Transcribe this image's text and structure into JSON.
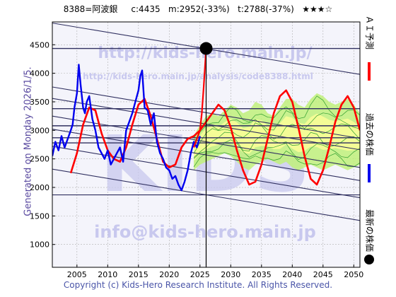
{
  "header": {
    "title": "8388=阿波銀     c:4435   m:2952(-33%)   t:2788(-37%)   ★★★☆"
  },
  "side_text": "Generated on Monday 2026/1/5.",
  "copyright": "Copyright (c) Kids-Hero Research Institute. All Rights Reserved.",
  "watermarks": {
    "url_main": "http://kids-hero.main.jp/",
    "url_analysis": "http://kids-hero.main.jp/analysis/code8388.html",
    "email": "info@kids-hero.main.jp",
    "big": "KIDS"
  },
  "legend": {
    "ai_forecast": "ＡＩ予測",
    "past_price": "過去の株価",
    "latest_price": "最新の株価"
  },
  "colors": {
    "ai_forecast": "#ff0000",
    "past_price": "#0000ee",
    "recent_price": "#ff0000",
    "latest_marker": "#000000",
    "band_fill": "#bff07a",
    "band_lines": "#2f9e2f",
    "yellow_fill": "#ffff99",
    "trend_lines": "#303060",
    "grid": "#b0b0b0"
  },
  "chart_data": {
    "type": "line",
    "xlim": [
      2001,
      2051
    ],
    "ylim": [
      600,
      4900
    ],
    "x_ticks": [
      2005,
      2010,
      2015,
      2020,
      2025,
      2030,
      2035,
      2040,
      2045,
      2050
    ],
    "y_ticks": [
      1000,
      1500,
      2000,
      2500,
      3000,
      3500,
      4000,
      4500
    ],
    "grid": true,
    "latest": {
      "x": 2026.0,
      "y": 4435,
      "label": "c:4435"
    },
    "vertical_line_x": 2026.0,
    "horizontal_levels": [
      4435,
      3380,
      3080,
      2870,
      2780
    ],
    "trend_lines": [
      {
        "x": [
          2001,
          2051
        ],
        "y": [
          4880,
          3980
        ]
      },
      {
        "x": [
          2001,
          2051
        ],
        "y": [
          3760,
          2860
        ]
      },
      {
        "x": [
          2001,
          2051
        ],
        "y": [
          3560,
          2660
        ]
      },
      {
        "x": [
          2001,
          2051
        ],
        "y": [
          3250,
          2350
        ]
      },
      {
        "x": [
          2001,
          2051
        ],
        "y": [
          3020,
          2120
        ]
      },
      {
        "x": [
          2001,
          2051
        ],
        "y": [
          2720,
          1820
        ]
      },
      {
        "x": [
          2001,
          2051
        ],
        "y": [
          2320,
          1420
        ]
      },
      {
        "x": [
          2001,
          2051
        ],
        "y": [
          1870,
          1870
        ]
      }
    ],
    "series": [
      {
        "name": "過去の株価",
        "x": [
          2001.0,
          2001.5,
          2002.0,
          2002.5,
          2003.0,
          2003.5,
          2004.0,
          2004.3,
          2004.6,
          2005.0,
          2005.3,
          2005.6,
          2006.0,
          2006.3,
          2006.6,
          2007.0,
          2007.5,
          2008.0,
          2008.5,
          2009.0,
          2009.5,
          2010.0,
          2010.5,
          2011.0,
          2011.5,
          2012.0,
          2012.5,
          2013.0,
          2013.5,
          2014.0,
          2014.5,
          2015.0,
          2015.3,
          2015.6,
          2016.0,
          2016.5,
          2017.0,
          2017.5,
          2018.0,
          2018.5,
          2019.0,
          2019.5,
          2020.0,
          2020.5,
          2021.0,
          2021.5,
          2022.0,
          2022.5,
          2023.0,
          2023.5,
          2024.0,
          2024.5,
          2025.0
        ],
        "y": [
          2550,
          2800,
          2650,
          2900,
          2700,
          2850,
          3000,
          3100,
          3400,
          3650,
          4150,
          3800,
          3400,
          3300,
          3500,
          3600,
          3200,
          3000,
          2700,
          2600,
          2500,
          2650,
          2400,
          2500,
          2600,
          2700,
          2450,
          3000,
          3150,
          3300,
          3500,
          3700,
          3950,
          4050,
          3400,
          3350,
          3100,
          3300,
          2800,
          2600,
          2500,
          2350,
          2300,
          2150,
          2200,
          2050,
          1950,
          2100,
          2300,
          2600,
          2800,
          2700,
          2900
        ]
      },
      {
        "name": "recent",
        "x": [
          2024.0,
          2024.5,
          2025.0,
          2025.3,
          2025.6,
          2026.0
        ],
        "y": [
          2700,
          2850,
          3000,
          3300,
          3750,
          4435
        ]
      },
      {
        "name": "ＡＩ予測",
        "x": [
          2004.0,
          2005.0,
          2006.0,
          2007.0,
          2008.0,
          2009.0,
          2010.0,
          2011.0,
          2012.0,
          2013.0,
          2014.0,
          2015.0,
          2016.0,
          2017.0,
          2018.0,
          2019.0,
          2020.0,
          2021.0,
          2022.0,
          2023.0,
          2024.0,
          2025.0,
          2026.0,
          2027.0,
          2028.0,
          2029.0,
          2030.0,
          2031.0,
          2032.0,
          2033.0,
          2034.0,
          2035.0,
          2036.0,
          2037.0,
          2038.0,
          2039.0,
          2040.0,
          2041.0,
          2042.0,
          2043.0,
          2044.0,
          2045.0,
          2046.0,
          2047.0,
          2048.0,
          2049.0,
          2050.0,
          2051.0
        ],
        "y": [
          2250,
          2600,
          3100,
          3400,
          3350,
          2950,
          2650,
          2500,
          2450,
          2700,
          3100,
          3450,
          3550,
          3250,
          2850,
          2450,
          2350,
          2400,
          2700,
          2850,
          2900,
          3000,
          3150,
          3300,
          3450,
          3350,
          3050,
          2650,
          2300,
          2050,
          2100,
          2400,
          2850,
          3300,
          3600,
          3700,
          3500,
          3050,
          2550,
          2150,
          2050,
          2300,
          2700,
          3150,
          3450,
          3600,
          3400,
          3000
        ]
      }
    ],
    "band": {
      "x": [
        2024.0,
        2025.0,
        2026.0,
        2027.0,
        2028.0,
        2029.0,
        2030.0,
        2031.0,
        2032.0,
        2033.0,
        2034.0,
        2035.0,
        2036.0,
        2037.0,
        2038.0,
        2039.0,
        2040.0,
        2041.0,
        2042.0,
        2043.0,
        2044.0,
        2045.0,
        2046.0,
        2047.0,
        2048.0,
        2049.0,
        2050.0,
        2051.0
      ],
      "upper": [
        2900,
        3100,
        3250,
        3300,
        3250,
        3350,
        3450,
        3400,
        3300,
        3350,
        3500,
        3450,
        3300,
        3250,
        3400,
        3550,
        3550,
        3450,
        3400,
        3550,
        3650,
        3600,
        3500,
        3450,
        3500,
        3550,
        3450,
        3300
      ],
      "lower": [
        2300,
        2400,
        2450,
        2500,
        2550,
        2600,
        2550,
        2450,
        2350,
        2300,
        2400,
        2450,
        2500,
        2450,
        2400,
        2450,
        2350,
        2300,
        2350,
        2400,
        2350,
        2300,
        2350,
        2400,
        2350,
        2300,
        2350,
        2400
      ]
    }
  }
}
